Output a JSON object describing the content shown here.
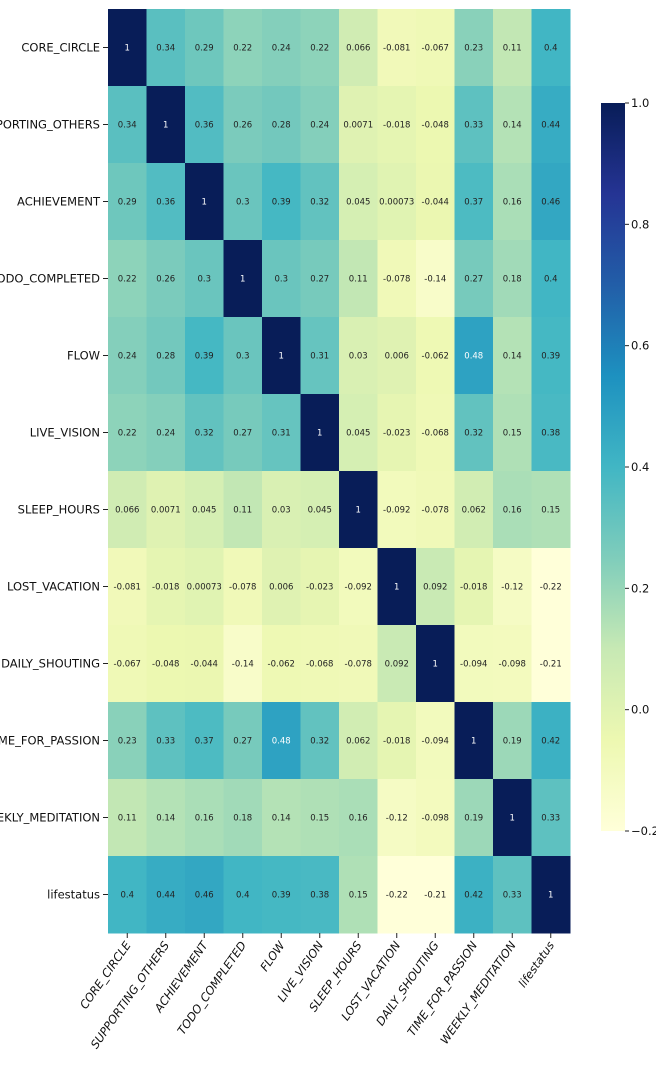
{
  "chart_data": {
    "type": "heatmap",
    "title": "",
    "xlabel": "",
    "ylabel": "",
    "row_labels": [
      "CORE_CIRCLE",
      "SUPPORTING_OTHERS",
      "ACHIEVEMENT",
      "TODO_COMPLETED",
      "FLOW",
      "LIVE_VISION",
      "SLEEP_HOURS",
      "LOST_VACATION",
      "DAILY_SHOUTING",
      "TIME_FOR_PASSION",
      "WEEKLY_MEDITATION",
      "lifestatus"
    ],
    "col_labels": [
      "CORE_CIRCLE",
      "SUPPORTING_OTHERS",
      "ACHIEVEMENT",
      "TODO_COMPLETED",
      "FLOW",
      "LIVE_VISION",
      "SLEEP_HOURS",
      "LOST_VACATION",
      "DAILY_SHOUTING",
      "TIME_FOR_PASSION",
      "WEEKLY_MEDITATION",
      "lifestatus"
    ],
    "values": [
      [
        1,
        0.34,
        0.29,
        0.22,
        0.24,
        0.22,
        0.066,
        -0.081,
        -0.067,
        0.23,
        0.11,
        0.4
      ],
      [
        0.34,
        1,
        0.36,
        0.26,
        0.28,
        0.24,
        0.0071,
        -0.018,
        -0.048,
        0.33,
        0.14,
        0.44
      ],
      [
        0.29,
        0.36,
        1,
        0.3,
        0.39,
        0.32,
        0.045,
        0.00073,
        -0.044,
        0.37,
        0.16,
        0.46
      ],
      [
        0.22,
        0.26,
        0.3,
        1,
        0.3,
        0.27,
        0.11,
        -0.078,
        -0.14,
        0.27,
        0.18,
        0.4
      ],
      [
        0.24,
        0.28,
        0.39,
        0.3,
        1,
        0.31,
        0.03,
        0.006,
        -0.062,
        0.48,
        0.14,
        0.39
      ],
      [
        0.22,
        0.24,
        0.32,
        0.27,
        0.31,
        1,
        0.045,
        -0.023,
        -0.068,
        0.32,
        0.15,
        0.38
      ],
      [
        0.066,
        0.0071,
        0.045,
        0.11,
        0.03,
        0.045,
        1,
        -0.092,
        -0.078,
        0.062,
        0.16,
        0.15
      ],
      [
        -0.081,
        -0.018,
        0.00073,
        -0.078,
        0.006,
        -0.023,
        -0.092,
        1,
        0.092,
        -0.018,
        -0.12,
        -0.22
      ],
      [
        -0.067,
        -0.048,
        -0.044,
        -0.14,
        -0.062,
        -0.068,
        -0.078,
        0.092,
        1,
        -0.094,
        -0.098,
        -0.21
      ],
      [
        0.23,
        0.33,
        0.37,
        0.27,
        0.48,
        0.32,
        0.062,
        -0.018,
        -0.094,
        1,
        0.19,
        0.42
      ],
      [
        0.11,
        0.14,
        0.16,
        0.18,
        0.14,
        0.15,
        0.16,
        -0.12,
        -0.098,
        0.19,
        1,
        0.33
      ],
      [
        0.4,
        0.44,
        0.46,
        0.4,
        0.39,
        0.38,
        0.15,
        -0.22,
        -0.21,
        0.42,
        0.33,
        1
      ]
    ],
    "value_labels": [
      [
        "1",
        "0.34",
        "0.29",
        "0.22",
        "0.24",
        "0.22",
        "0.066",
        "-0.081",
        "-0.067",
        "0.23",
        "0.11",
        "0.4"
      ],
      [
        "0.34",
        "1",
        "0.36",
        "0.26",
        "0.28",
        "0.24",
        "0.0071",
        "-0.018",
        "-0.048",
        "0.33",
        "0.14",
        "0.44"
      ],
      [
        "0.29",
        "0.36",
        "1",
        "0.3",
        "0.39",
        "0.32",
        "0.045",
        "0.00073",
        "-0.044",
        "0.37",
        "0.16",
        "0.46"
      ],
      [
        "0.22",
        "0.26",
        "0.3",
        "1",
        "0.3",
        "0.27",
        "0.11",
        "-0.078",
        "-0.14",
        "0.27",
        "0.18",
        "0.4"
      ],
      [
        "0.24",
        "0.28",
        "0.39",
        "0.3",
        "1",
        "0.31",
        "0.03",
        "0.006",
        "-0.062",
        "0.48",
        "0.14",
        "0.39"
      ],
      [
        "0.22",
        "0.24",
        "0.32",
        "0.27",
        "0.31",
        "1",
        "0.045",
        "-0.023",
        "-0.068",
        "0.32",
        "0.15",
        "0.38"
      ],
      [
        "0.066",
        "0.0071",
        "0.045",
        "0.11",
        "0.03",
        "0.045",
        "1",
        "-0.092",
        "-0.078",
        "0.062",
        "0.16",
        "0.15"
      ],
      [
        "-0.081",
        "-0.018",
        "0.00073",
        "-0.078",
        "0.006",
        "-0.023",
        "-0.092",
        "1",
        "0.092",
        "-0.018",
        "-0.12",
        "-0.22"
      ],
      [
        "-0.067",
        "-0.048",
        "-0.044",
        "-0.14",
        "-0.062",
        "-0.068",
        "-0.078",
        "0.092",
        "1",
        "-0.094",
        "-0.098",
        "-0.21"
      ],
      [
        "0.23",
        "0.33",
        "0.37",
        "0.27",
        "0.48",
        "0.32",
        "0.062",
        "-0.018",
        "-0.094",
        "1",
        "0.19",
        "0.42"
      ],
      [
        "0.11",
        "0.14",
        "0.16",
        "0.18",
        "0.14",
        "0.15",
        "0.16",
        "-0.12",
        "-0.098",
        "0.19",
        "1",
        "0.33"
      ],
      [
        "0.4",
        "0.44",
        "0.46",
        "0.4",
        "0.39",
        "0.38",
        "0.15",
        "-0.22",
        "-0.21",
        "0.42",
        "0.33",
        "1"
      ]
    ],
    "colorbar": {
      "colormap": "YlGnBu",
      "vmin": -0.2,
      "vmax": 1.0,
      "ticks": [
        1.0,
        0.8,
        0.6,
        0.4,
        0.2,
        0.0,
        -0.2
      ],
      "tick_labels": [
        "1.0",
        "0.8",
        "0.6",
        "0.4",
        "0.2",
        "0.0",
        "−0.2"
      ],
      "placement": "right"
    },
    "colormap_stops": [
      "#ffffd9",
      "#edf8b1",
      "#c7e9b4",
      "#7fcdbb",
      "#41b6c4",
      "#1d91c0",
      "#225ea8",
      "#253494",
      "#081d58"
    ],
    "grid": false,
    "legend": "colorbar-right"
  }
}
